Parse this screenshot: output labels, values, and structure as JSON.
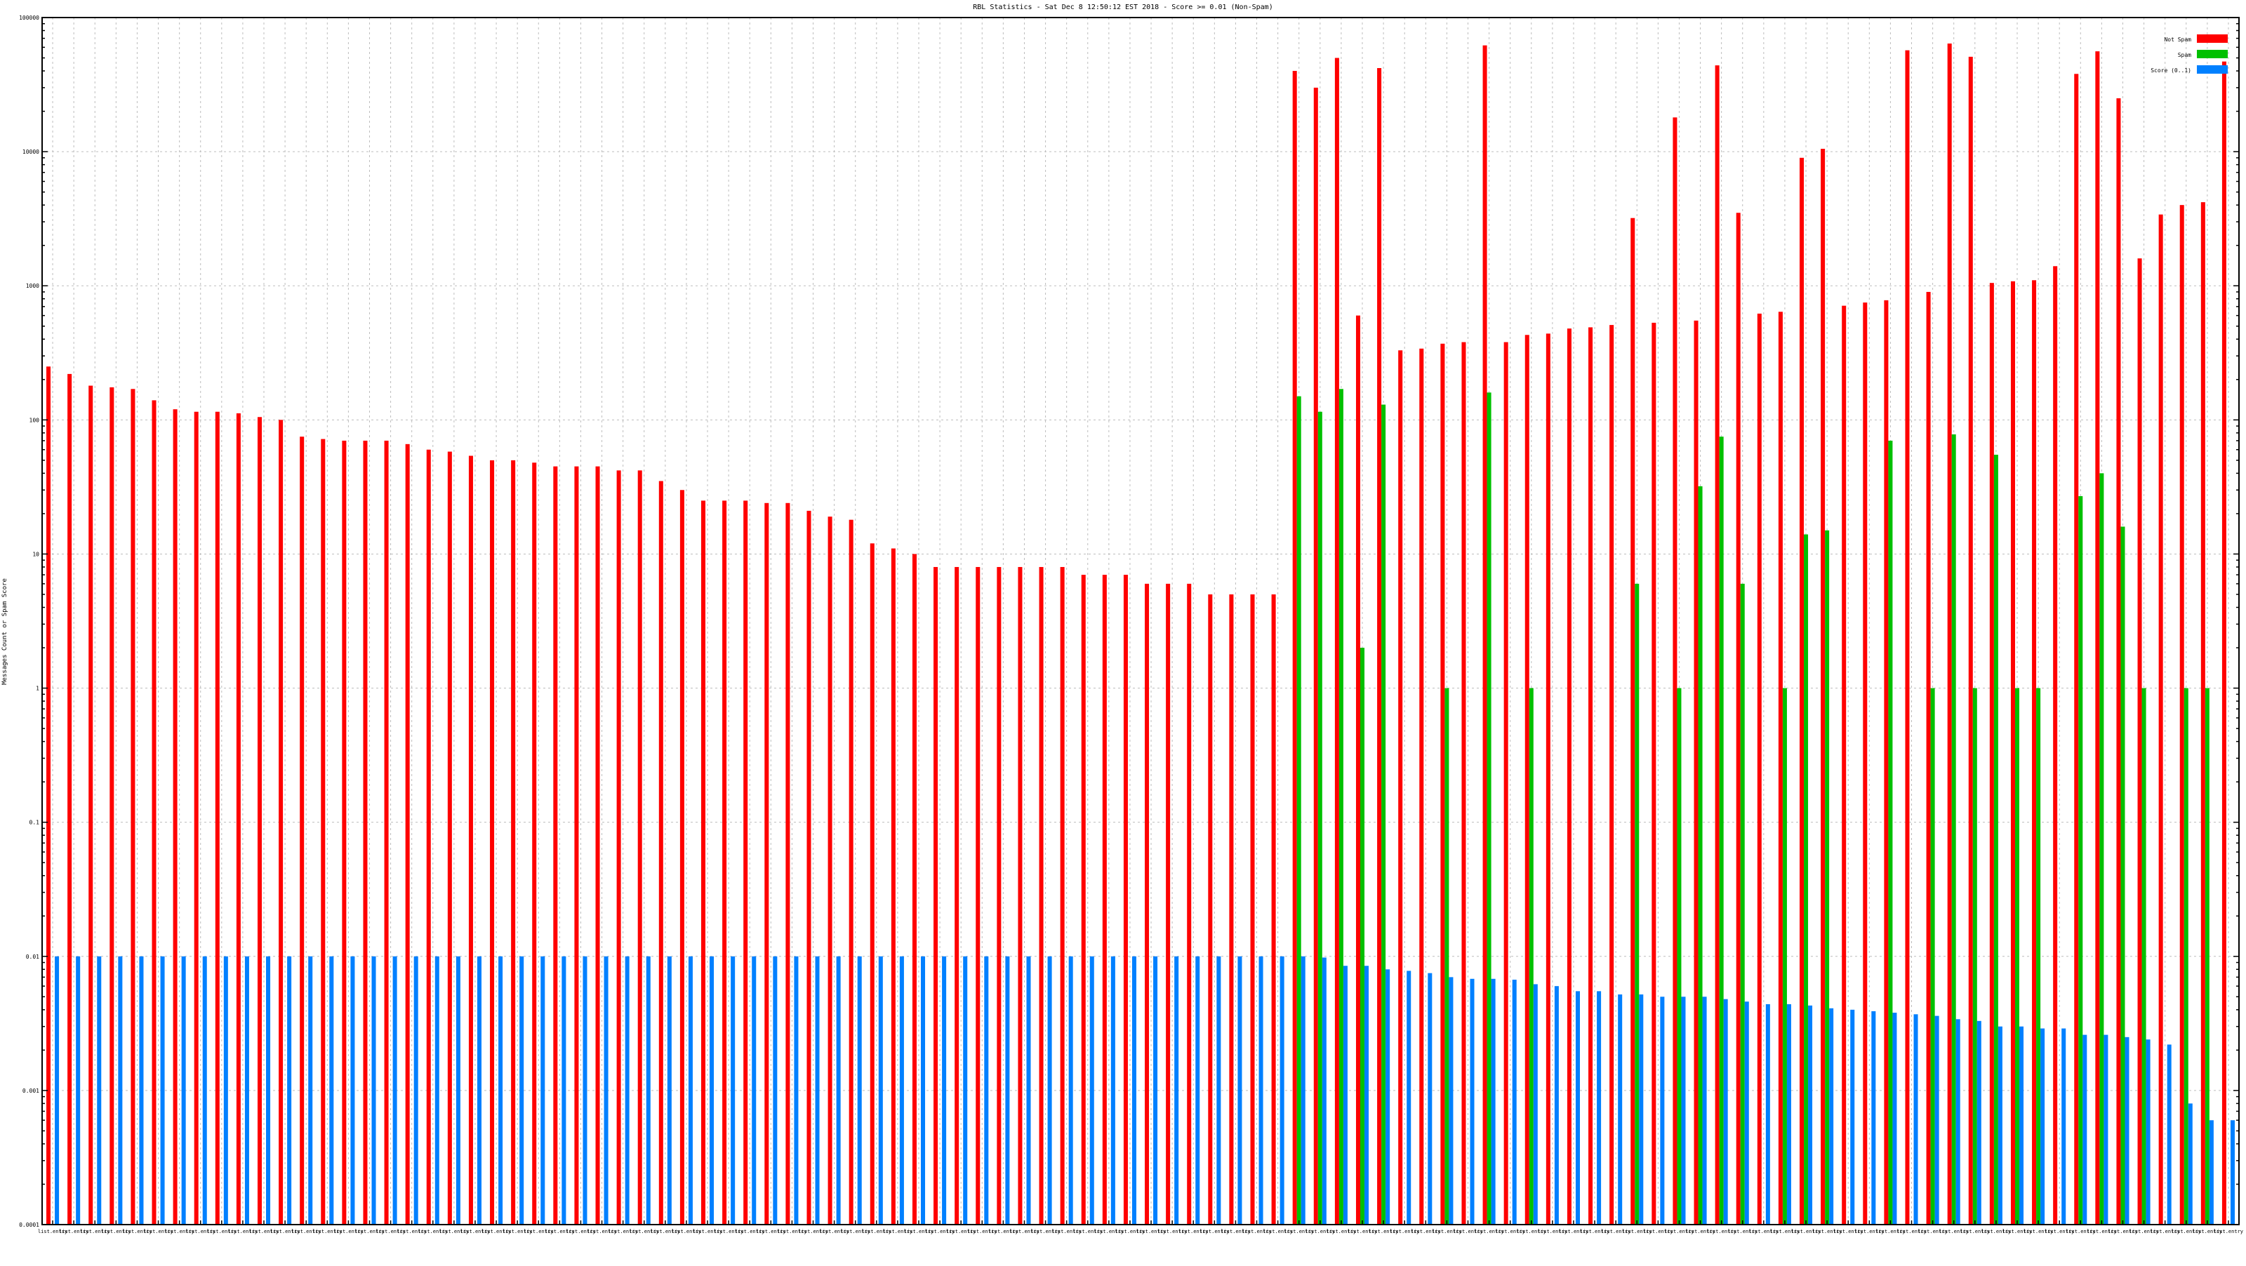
{
  "chart_data": {
    "type": "bar",
    "title": "RBL Statistics - Sat Dec  8 12:50:12 EST 2018 - Score >= 0.01 (Non-Spam)",
    "ylabel": "Messages Count or Spam Score",
    "xlabel": "",
    "yscale": "log",
    "ylim": [
      0.0001,
      100000
    ],
    "y_tick_labels": [
      "100000",
      "10000",
      "1000",
      "100",
      "10",
      "1",
      "0.1",
      "0.01",
      "0.001",
      "0.0001"
    ],
    "grid": true,
    "legend_position": "top-right",
    "categories": [
      "list.entry",
      "list.entry",
      "list.entry",
      "list.entry",
      "list.entry",
      "list.entry",
      "list.entry",
      "list.entry",
      "list.entry",
      "list.entry",
      "list.entry",
      "list.entry",
      "list.entry",
      "list.entry",
      "list.entry",
      "list.entry",
      "list.entry",
      "list.entry",
      "list.entry",
      "list.entry",
      "list.entry",
      "list.entry",
      "list.entry",
      "list.entry",
      "list.entry",
      "list.entry",
      "list.entry",
      "list.entry",
      "list.entry",
      "list.entry",
      "list.entry",
      "list.entry",
      "list.entry",
      "list.entry",
      "list.entry",
      "list.entry",
      "list.entry",
      "list.entry",
      "list.entry",
      "list.entry",
      "list.entry",
      "list.entry",
      "list.entry",
      "list.entry",
      "list.entry",
      "list.entry",
      "list.entry",
      "list.entry",
      "list.entry",
      "list.entry",
      "list.entry",
      "list.entry",
      "list.entry",
      "list.entry",
      "list.entry",
      "list.entry",
      "list.entry",
      "list.entry",
      "list.entry",
      "list.entry",
      "list.entry",
      "list.entry",
      "list.entry",
      "list.entry",
      "list.entry",
      "list.entry",
      "list.entry",
      "list.entry",
      "list.entry",
      "list.entry",
      "list.entry",
      "list.entry",
      "list.entry",
      "list.entry",
      "list.entry",
      "list.entry",
      "list.entry",
      "list.entry",
      "list.entry",
      "list.entry",
      "list.entry",
      "list.entry",
      "list.entry",
      "list.entry",
      "list.entry",
      "list.entry",
      "list.entry",
      "list.entry",
      "list.entry",
      "list.entry",
      "list.entry",
      "list.entry",
      "list.entry",
      "list.entry",
      "list.entry",
      "list.entry",
      "list.entry",
      "list.entry",
      "list.entry",
      "list.entry",
      "list.entry",
      "list.entry",
      "list.entry",
      "list.entry"
    ],
    "series": [
      {
        "name": "Not Spam",
        "color": "#ff0000",
        "values": [
          250,
          220,
          180,
          175,
          170,
          140,
          120,
          115,
          115,
          112,
          105,
          100,
          75,
          72,
          70,
          70,
          70,
          66,
          60,
          58,
          54,
          50,
          50,
          48,
          45,
          45,
          45,
          42,
          42,
          35,
          30,
          25,
          25,
          25,
          24,
          24,
          21,
          19,
          18,
          12,
          11,
          10,
          8,
          8,
          8,
          8,
          8,
          8,
          8,
          7,
          7,
          7,
          6,
          6,
          6,
          5,
          5,
          5,
          5,
          40000,
          30000,
          50000,
          600,
          42000,
          330,
          340,
          370,
          380,
          62000,
          380,
          430,
          440,
          480,
          490,
          510,
          3200,
          530,
          18000,
          550,
          44000,
          3500,
          620,
          640,
          9000,
          10500,
          710,
          750,
          780,
          57000,
          900,
          64000,
          51000,
          1050,
          1080,
          1100,
          1400,
          38000,
          56000,
          25000,
          1600,
          3400,
          4000,
          4200,
          47000
        ]
      },
      {
        "name": "Spam",
        "color": "#00c000",
        "values": [
          null,
          null,
          null,
          null,
          null,
          null,
          null,
          null,
          null,
          null,
          null,
          null,
          null,
          null,
          null,
          null,
          null,
          null,
          null,
          null,
          null,
          null,
          null,
          null,
          null,
          null,
          null,
          null,
          null,
          null,
          null,
          null,
          null,
          null,
          null,
          null,
          null,
          null,
          null,
          null,
          null,
          null,
          null,
          null,
          null,
          null,
          null,
          null,
          null,
          null,
          null,
          null,
          null,
          null,
          null,
          null,
          null,
          null,
          null,
          150,
          115,
          170,
          2,
          130,
          null,
          null,
          1,
          null,
          160,
          null,
          1,
          null,
          null,
          null,
          null,
          6,
          null,
          1,
          32,
          75,
          6,
          null,
          1,
          14,
          15,
          null,
          null,
          70,
          null,
          1,
          78,
          1,
          55,
          1,
          1,
          null,
          27,
          40,
          16,
          1,
          null,
          1,
          1,
          null
        ]
      },
      {
        "name": "Score (0..1)",
        "color": "#0080ff",
        "values": [
          0.01,
          0.01,
          0.01,
          0.01,
          0.01,
          0.01,
          0.01,
          0.01,
          0.01,
          0.01,
          0.01,
          0.01,
          0.01,
          0.01,
          0.01,
          0.01,
          0.01,
          0.01,
          0.01,
          0.01,
          0.01,
          0.01,
          0.01,
          0.01,
          0.01,
          0.01,
          0.01,
          0.01,
          0.01,
          0.01,
          0.01,
          0.01,
          0.01,
          0.01,
          0.01,
          0.01,
          0.01,
          0.01,
          0.01,
          0.01,
          0.01,
          0.01,
          0.01,
          0.01,
          0.01,
          0.01,
          0.01,
          0.01,
          0.01,
          0.01,
          0.01,
          0.01,
          0.01,
          0.01,
          0.01,
          0.01,
          0.01,
          0.01,
          0.01,
          0.01,
          0.0098,
          0.0085,
          0.0085,
          0.008,
          0.0078,
          0.0075,
          0.007,
          0.0068,
          0.0068,
          0.0067,
          0.0062,
          0.006,
          0.0055,
          0.0055,
          0.0052,
          0.0052,
          0.005,
          0.005,
          0.005,
          0.0048,
          0.0046,
          0.0044,
          0.0044,
          0.0043,
          0.0041,
          0.004,
          0.0039,
          0.0038,
          0.0037,
          0.0036,
          0.0034,
          0.0033,
          0.003,
          0.003,
          0.0029,
          0.0029,
          0.0026,
          0.0026,
          0.0025,
          0.0024,
          0.0022,
          0.0008,
          0.0006,
          0.0006
        ]
      }
    ]
  }
}
